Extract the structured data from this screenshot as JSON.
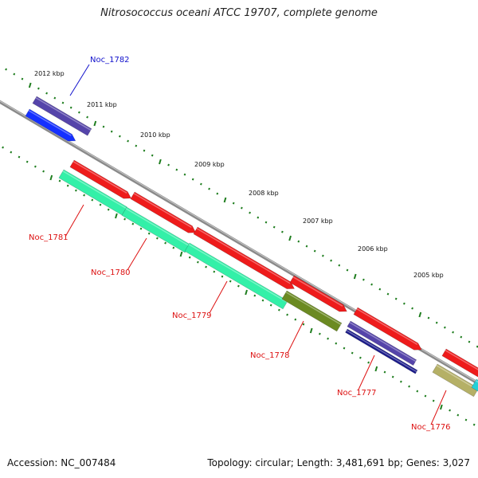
{
  "title": "Nitrosococcus oceani ATCC 19707, complete genome",
  "footer": {
    "accession": "Accession: NC_007484",
    "stats": "Topology: circular; Length: 3,481,691 bp; Genes: 3,027"
  },
  "colors": {
    "backbone": "#8a8a8a",
    "tick": "#1e7d1e",
    "cds_red": "#ee1b1b",
    "cds_teal": "#33f0a8",
    "cds_olive": "#6b8a22",
    "cds_purple": "#5544aa",
    "cds_navy": "#1a1a8a",
    "cds_blue": "#1530ff",
    "cds_khaki": "#b5b066",
    "cds_cyan": "#22d0d8",
    "label_red": "#dd1111",
    "label_blue": "#1111cc"
  },
  "kbp_labels": [
    "2012 kbp",
    "2011 kbp",
    "2010 kbp",
    "2009 kbp",
    "2008 kbp",
    "2007 kbp",
    "2006 kbp",
    "2005 kbp"
  ],
  "genes": [
    {
      "label": "Noc_1782",
      "color": "label_blue"
    },
    {
      "label": "Noc_1781",
      "color": "label_red"
    },
    {
      "label": "Noc_1780",
      "color": "label_red"
    },
    {
      "label": "Noc_1779",
      "color": "label_red"
    },
    {
      "label": "Noc_1778",
      "color": "label_red"
    },
    {
      "label": "Noc_1777",
      "color": "label_red"
    },
    {
      "label": "Noc_1776",
      "color": "label_red"
    }
  ]
}
